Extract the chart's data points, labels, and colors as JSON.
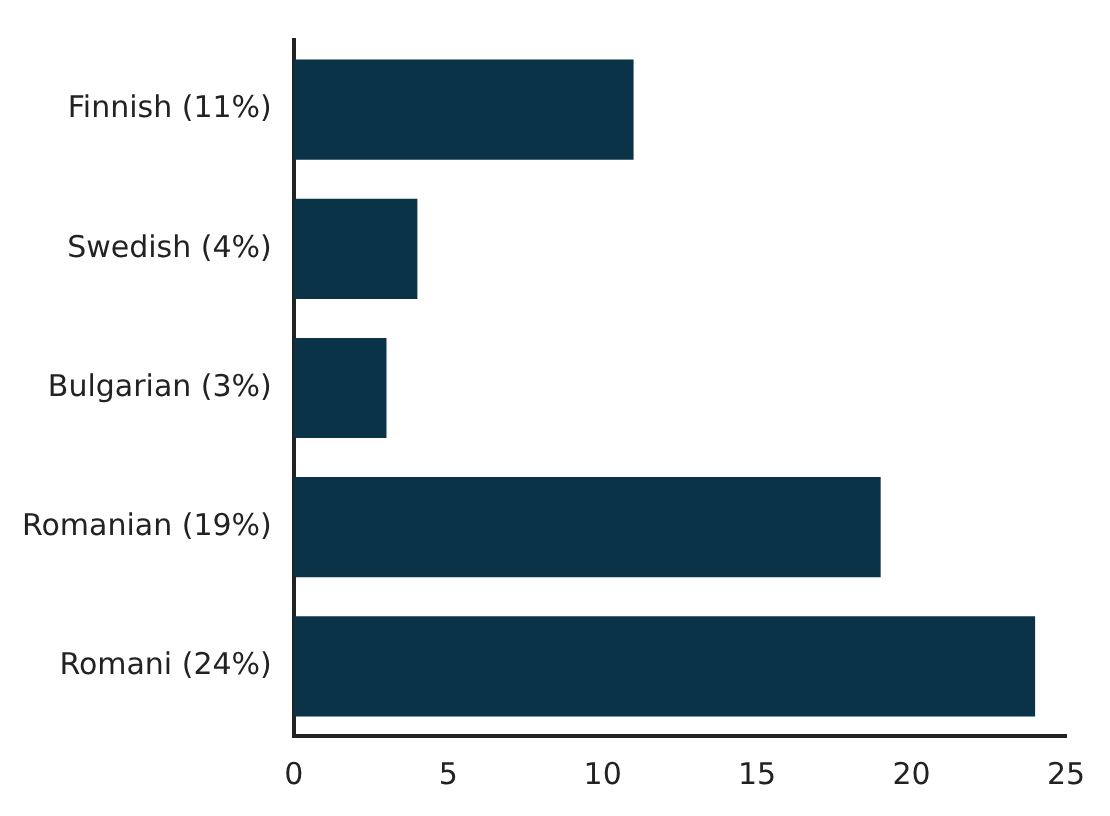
{
  "chart_data": {
    "type": "bar",
    "orientation": "horizontal",
    "categories": [
      "Finnish (11%)",
      "Swedish (4%)",
      "Bulgarian (3%)",
      "Romanian (19%)",
      "Romani (24%)"
    ],
    "values": [
      11,
      4,
      3,
      19,
      24
    ],
    "color": "#0b3347",
    "xlim": [
      0,
      25
    ],
    "xticks": [
      0,
      5,
      10,
      15,
      20,
      25
    ],
    "grid": false,
    "legend": false
  }
}
